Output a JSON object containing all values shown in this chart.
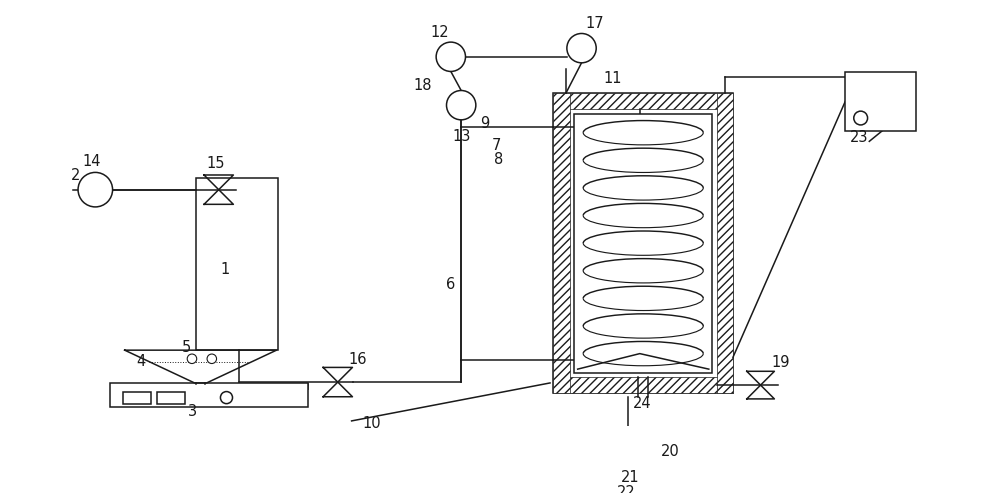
{
  "bg_color": "#ffffff",
  "line_color": "#1a1a1a",
  "label_color": "#1a1a1a",
  "label_fontsize": 10.5,
  "fig_width": 10.0,
  "fig_height": 4.93
}
